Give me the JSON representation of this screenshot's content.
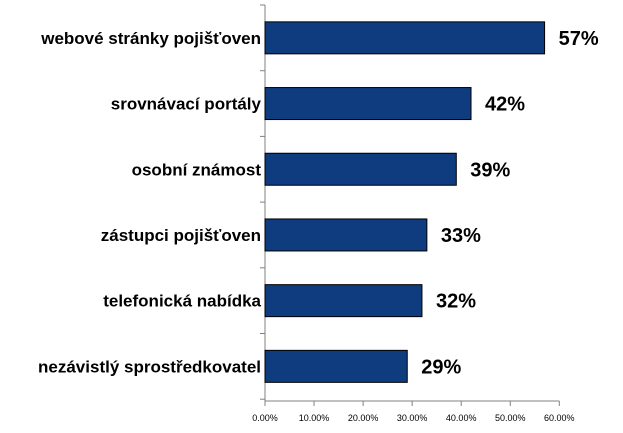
{
  "chart_data": {
    "type": "bar",
    "orientation": "horizontal",
    "categories": [
      "webové stránky pojišťoven",
      "srovnávací portály",
      "osobní známost",
      "zástupci pojišťoven",
      "telefonická nabídka",
      "nezávistlý sprostředkovatel"
    ],
    "values": [
      57,
      42,
      39,
      33,
      32,
      29
    ],
    "data_labels": [
      "57%",
      "42%",
      "39%",
      "33%",
      "32%",
      "29%"
    ],
    "xlim": [
      0,
      60
    ],
    "x_ticks": [
      0,
      10,
      20,
      30,
      40,
      50,
      60
    ],
    "x_tick_labels": [
      "0.00%",
      "10.00%",
      "20.00%",
      "30.00%",
      "40.00%",
      "50.00%",
      "60.00%"
    ],
    "title": "",
    "xlabel": "",
    "ylabel": "",
    "grid": false,
    "legend": "none",
    "bar_color": "#0f3b7f",
    "bar_border_color": "#000000"
  }
}
